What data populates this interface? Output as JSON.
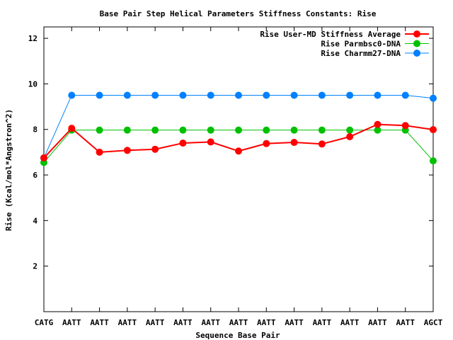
{
  "chart_data": {
    "type": "line",
    "title": "Base Pair Step Helical Parameters Stiffness Constants: Rise",
    "xlabel": "Sequence Base Pair",
    "ylabel": "Rise (Kcal/mol*Angstron^2)",
    "categories": [
      "CATG",
      "AATT",
      "AATT",
      "AATT",
      "AATT",
      "AATT",
      "AATT",
      "AATT",
      "AATT",
      "AATT",
      "AATT",
      "AATT",
      "AATT",
      "AATT",
      "AGCT"
    ],
    "ylim": [
      0,
      12.5
    ],
    "yticks": [
      2,
      4,
      6,
      8,
      10,
      12
    ],
    "grid": false,
    "legend_position": "top-right",
    "series": [
      {
        "name": "Rise User-MD Stiffness Average",
        "color": "#ff0000",
        "values": [
          6.75,
          8.05,
          7.0,
          7.08,
          7.13,
          7.4,
          7.45,
          7.05,
          7.38,
          7.43,
          7.36,
          7.68,
          8.22,
          8.17,
          7.99
        ]
      },
      {
        "name": "Rise Parmbsc0-DNA",
        "color": "#00c000",
        "values": [
          6.55,
          7.97,
          7.97,
          7.97,
          7.97,
          7.97,
          7.97,
          7.97,
          7.97,
          7.97,
          7.97,
          7.97,
          7.97,
          7.97,
          6.62
        ]
      },
      {
        "name": "Rise Charmm27-DNA",
        "color": "#0080ff",
        "values": [
          6.75,
          9.5,
          9.5,
          9.5,
          9.5,
          9.5,
          9.5,
          9.5,
          9.5,
          9.5,
          9.5,
          9.5,
          9.5,
          9.5,
          9.37
        ]
      }
    ]
  }
}
